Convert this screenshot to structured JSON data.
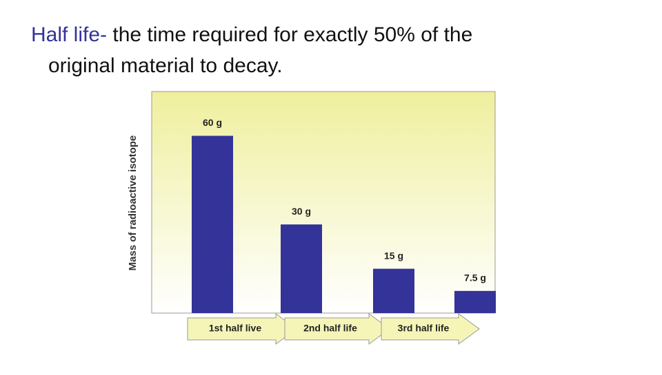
{
  "slide": {
    "term": "Half life-",
    "definition_line1": " the time required for exactly 50% of the",
    "definition_line2": "original material to decay."
  },
  "chart_data": {
    "type": "bar",
    "ylabel": "Mass of radioactive isotope",
    "categories": [
      null,
      null,
      null,
      null
    ],
    "values": [
      60,
      30,
      15,
      7.5
    ],
    "value_labels": [
      "60 g",
      "30 g",
      "15 g",
      "7.5 g"
    ],
    "color": "#333399",
    "ylim": [
      0,
      75
    ],
    "interval_labels": [
      "1st half live",
      "2nd half life",
      "3rd half life"
    ]
  }
}
